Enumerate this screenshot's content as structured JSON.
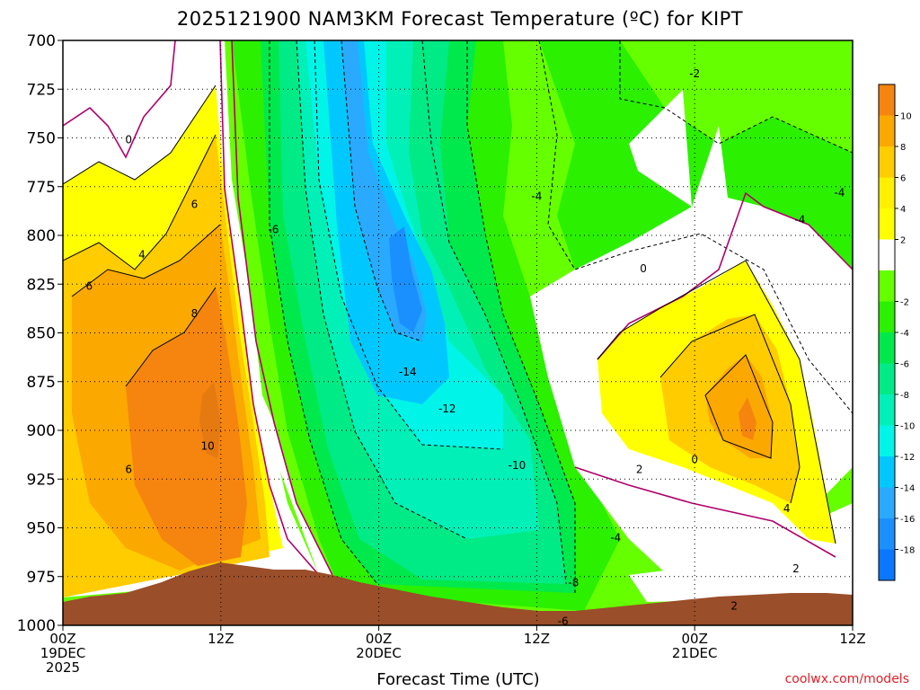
{
  "chart_data": {
    "type": "heatmap",
    "title": "2025121900 NAM3KM Forecast Temperature (ºC) for KIPT",
    "xlabel": "Forecast Time (UTC)",
    "ylabel": "",
    "credit": "coolwx.com/models",
    "y_ticks": [
      "700",
      "725",
      "750",
      "775",
      "800",
      "825",
      "850",
      "875",
      "900",
      "925",
      "950",
      "975",
      "1000"
    ],
    "y_range": [
      700,
      1000
    ],
    "y_inverted": true,
    "x_range_hours": [
      0,
      60
    ],
    "x_ticks": [
      {
        "hour": 0,
        "lines": [
          "00Z",
          "19DEC",
          "2025"
        ]
      },
      {
        "hour": 12,
        "lines": [
          "12Z"
        ]
      },
      {
        "hour": 24,
        "lines": [
          "00Z",
          "20DEC"
        ]
      },
      {
        "hour": 36,
        "lines": [
          "12Z"
        ]
      },
      {
        "hour": 48,
        "lines": [
          "00Z",
          "21DEC"
        ]
      },
      {
        "hour": 60,
        "lines": [
          "12Z"
        ]
      }
    ],
    "grid": true,
    "colorbar": {
      "labels": [
        "10",
        "8",
        "6",
        "4",
        "2",
        "-2",
        "-4",
        "-6",
        "-8",
        "-10",
        "-12",
        "-14",
        "-16",
        "-18"
      ],
      "colors": [
        "#f5850f",
        "#fba800",
        "#ffcc00",
        "#fff000",
        "#ffff00",
        "#ffffff",
        "#66ff00",
        "#2bf000",
        "#00e94c",
        "#00ea86",
        "#00f0b8",
        "#00f5e8",
        "#00c8ff",
        "#2aaaff",
        "#1a90ff",
        "#0a77ff"
      ]
    },
    "contour_labels": [
      {
        "t": 5.0,
        "p": 751,
        "text": "0"
      },
      {
        "t": 6.0,
        "p": 810,
        "text": "4"
      },
      {
        "t": 2.0,
        "p": 826,
        "text": "6"
      },
      {
        "t": 10.0,
        "p": 784,
        "text": "6"
      },
      {
        "t": 10.0,
        "p": 840,
        "text": "8"
      },
      {
        "t": 11.0,
        "p": 908,
        "text": "10"
      },
      {
        "t": 5.0,
        "p": 920,
        "text": "6"
      },
      {
        "t": 16.0,
        "p": 797,
        "text": "-6"
      },
      {
        "t": 26.2,
        "p": 870,
        "text": "-14"
      },
      {
        "t": 29.2,
        "p": 889,
        "text": "-12"
      },
      {
        "t": 34.5,
        "p": 918,
        "text": "-10"
      },
      {
        "t": 38.8,
        "p": 978,
        "text": "-8"
      },
      {
        "t": 38.0,
        "p": 998,
        "text": "-6"
      },
      {
        "t": 42.0,
        "p": 955,
        "text": "-4"
      },
      {
        "t": 36.0,
        "p": 780,
        "text": "-4"
      },
      {
        "t": 48.0,
        "p": 717,
        "text": "-2"
      },
      {
        "t": 43.8,
        "p": 920,
        "text": "2"
      },
      {
        "t": 44.1,
        "p": 817,
        "text": "0"
      },
      {
        "t": 48.0,
        "p": 915,
        "text": "0"
      },
      {
        "t": 55.0,
        "p": 940,
        "text": "4"
      },
      {
        "t": 55.7,
        "p": 971,
        "text": "2"
      },
      {
        "t": 51.0,
        "p": 990,
        "text": "2"
      },
      {
        "t": 56.0,
        "p": 792,
        "text": "-4"
      },
      {
        "t": 59.0,
        "p": 778,
        "text": "-4"
      }
    ],
    "extrema": {
      "warmest": {
        "value": "10",
        "hour": 11,
        "pressure": 880
      },
      "coldest": {
        "value": "-16",
        "hour": 26,
        "pressure": 815
      },
      "late_warm_core": {
        "value": "8",
        "hour": 54,
        "pressure": 880
      }
    },
    "terrain_color": "#9a4e29"
  }
}
